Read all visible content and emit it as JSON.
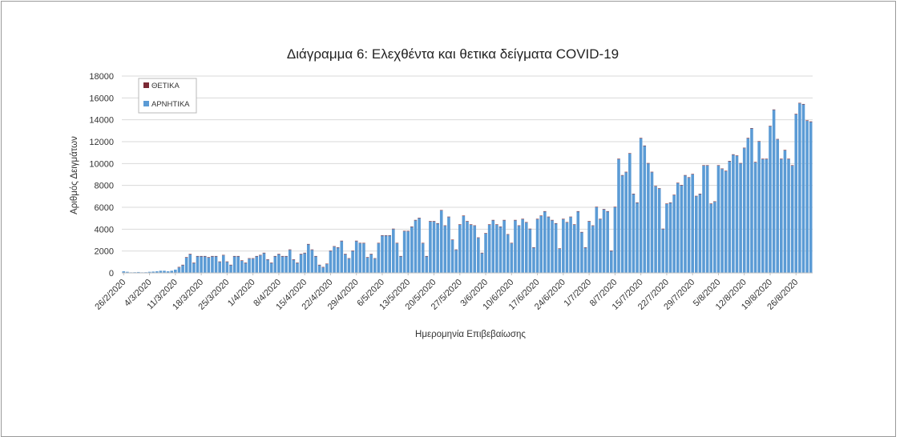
{
  "chart_data": {
    "type": "bar",
    "title": "Διάγραμμα 6: Ελεχθέντα και θετικα δείγματα COVID-19",
    "xlabel": "Ημερομηνία Επιβεβαίωσης",
    "ylabel": "Αριθμός Δειγμάτων",
    "ylim": [
      0,
      18000
    ],
    "yticks": [
      0,
      2000,
      4000,
      6000,
      8000,
      10000,
      12000,
      14000,
      16000,
      18000
    ],
    "x_tick_labels": [
      "26/2/2020",
      "4/3/2020",
      "11/3/2020",
      "18/3/2020",
      "25/3/2020",
      "1/4/2020",
      "8/4/2020",
      "15/4/2020",
      "22/4/2020",
      "29/4/2020",
      "6/5/2020",
      "13/5/2020",
      "20/5/2020",
      "27/5/2020",
      "3/6/2020",
      "10/6/2020",
      "17/6/2020",
      "24/6/2020",
      "1/7/2020",
      "8/7/2020",
      "15/7/2020",
      "22/7/2020",
      "29/7/2020",
      "5/8/2020",
      "12/8/2020",
      "19/8/2020",
      "26/8/2020"
    ],
    "grid": "horizontal",
    "legend_position": "top-left",
    "series": [
      {
        "name": "ΘΕΤΙΚΑ",
        "color": "#7b2a35",
        "values": [
          0,
          0,
          0,
          0,
          0,
          0,
          0,
          0,
          0,
          0,
          0,
          0,
          0,
          0,
          0,
          20,
          10,
          20,
          30,
          40,
          30,
          20,
          20,
          30,
          20,
          40,
          20,
          40,
          20,
          30,
          20,
          20,
          20,
          10,
          30,
          10,
          10,
          20,
          10,
          20,
          10,
          10,
          20,
          10,
          10,
          20,
          10,
          10,
          10,
          5,
          5,
          5,
          5,
          5,
          5,
          5,
          5,
          5,
          5,
          5,
          5,
          5,
          5,
          5,
          5,
          5,
          5,
          5,
          5,
          5,
          5,
          5,
          5,
          5,
          5,
          5,
          5,
          5,
          5,
          5,
          5,
          5,
          5,
          5,
          5,
          5,
          5,
          5,
          5,
          5,
          5,
          5,
          5,
          5,
          5,
          5,
          5,
          5,
          5,
          5,
          5,
          5,
          5,
          5,
          5,
          5,
          5,
          5,
          5,
          5,
          5,
          5,
          5,
          5,
          5,
          5,
          5,
          5,
          5,
          5,
          5,
          5,
          5,
          5,
          5,
          5,
          5,
          5,
          5,
          5,
          5,
          5,
          5,
          5,
          5,
          5,
          5,
          5,
          5,
          10,
          10,
          10,
          10,
          10,
          10,
          10,
          10,
          10,
          10,
          10,
          10,
          10,
          10,
          10,
          10,
          10,
          10,
          10,
          10,
          10,
          10,
          10,
          10,
          10,
          10,
          10,
          10,
          10,
          10,
          10,
          10,
          20,
          20,
          20,
          20,
          20,
          20,
          20,
          20,
          30,
          30,
          30,
          40,
          40,
          40,
          40,
          50,
          50,
          60,
          60,
          60,
          60,
          60
        ]
      },
      {
        "name": "ΑΡΝΗΤΙΚΑ",
        "color": "#5b9bd5",
        "values": [
          150,
          100,
          50,
          60,
          80,
          50,
          60,
          100,
          120,
          150,
          200,
          200,
          150,
          200,
          300,
          500,
          700,
          1400,
          1700,
          900,
          1500,
          1500,
          1500,
          1400,
          1500,
          1500,
          1000,
          1600,
          1000,
          700,
          1500,
          1500,
          1100,
          900,
          1300,
          1300,
          1500,
          1600,
          1800,
          1200,
          900,
          1500,
          1700,
          1500,
          1500,
          2100,
          1200,
          900,
          1700,
          1800,
          2600,
          2100,
          1500,
          700,
          500,
          800,
          2000,
          2400,
          2300,
          2900,
          1700,
          1300,
          2000,
          2900,
          2700,
          2700,
          1400,
          1700,
          1300,
          2700,
          3400,
          3400,
          3400,
          4000,
          2700,
          1500,
          3800,
          3800,
          4200,
          4800,
          5000,
          2700,
          1500,
          4700,
          4700,
          4500,
          5700,
          4300,
          5100,
          3000,
          2100,
          4400,
          5200,
          4700,
          4400,
          4300,
          3200,
          1800,
          3600,
          4400,
          4800,
          4400,
          4200,
          4800,
          3500,
          2700,
          4800,
          4300,
          4900,
          4600,
          4000,
          2300,
          4900,
          5200,
          5600,
          5100,
          4800,
          4500,
          2200,
          4900,
          4600,
          5100,
          4400,
          5600,
          3700,
          2300,
          4700,
          4300,
          6000,
          4900,
          5800,
          5600,
          2000,
          6000,
          10400,
          8900,
          9200,
          10900,
          7200,
          6400,
          12300,
          11600,
          10000,
          9200,
          7900,
          7700,
          4000,
          6300,
          6400,
          7100,
          8200,
          8000,
          8900,
          8700,
          9000,
          7000,
          7200,
          9800,
          9800,
          6300,
          6500,
          9800,
          9500,
          9300,
          10200,
          10800,
          10700,
          10000,
          11400,
          12300,
          13200,
          10100,
          12000,
          10400,
          10400,
          13400,
          14900,
          12200,
          10400,
          11200,
          10400,
          9800,
          14500,
          15500,
          15400,
          13900,
          13800
        ]
      }
    ]
  }
}
